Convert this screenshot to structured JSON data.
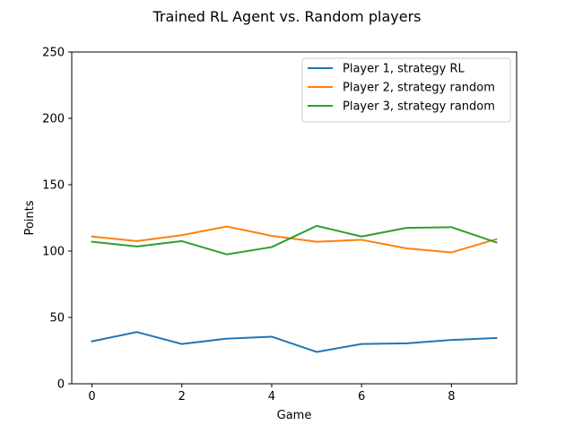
{
  "chart_data": {
    "type": "line",
    "title": "Trained RL Agent vs. Random players",
    "xlabel": "Game",
    "ylabel": "Points",
    "xlim": [
      -0.45,
      9.45
    ],
    "ylim": [
      0,
      250
    ],
    "x_ticks": [
      0,
      2,
      4,
      6,
      8
    ],
    "y_ticks": [
      0,
      50,
      100,
      150,
      200,
      250
    ],
    "grid": false,
    "legend_position": "upper right",
    "x": [
      0,
      1,
      2,
      3,
      4,
      5,
      6,
      7,
      8,
      9
    ],
    "series": [
      {
        "name": "Player 1, strategy RL",
        "color": "#1f77b4",
        "values": [
          32,
          39,
          30,
          34,
          35.5,
          24,
          30,
          30.5,
          33,
          34.5
        ]
      },
      {
        "name": "Player 2, strategy random",
        "color": "#ff7f0e",
        "values": [
          111,
          107.5,
          112,
          118.5,
          111.5,
          107,
          108.5,
          102,
          99,
          109
        ]
      },
      {
        "name": "Player 3, strategy random",
        "color": "#2ca02c",
        "values": [
          107,
          103.5,
          107.5,
          97.5,
          103,
          119,
          111,
          117.5,
          118,
          106.5
        ]
      }
    ]
  }
}
